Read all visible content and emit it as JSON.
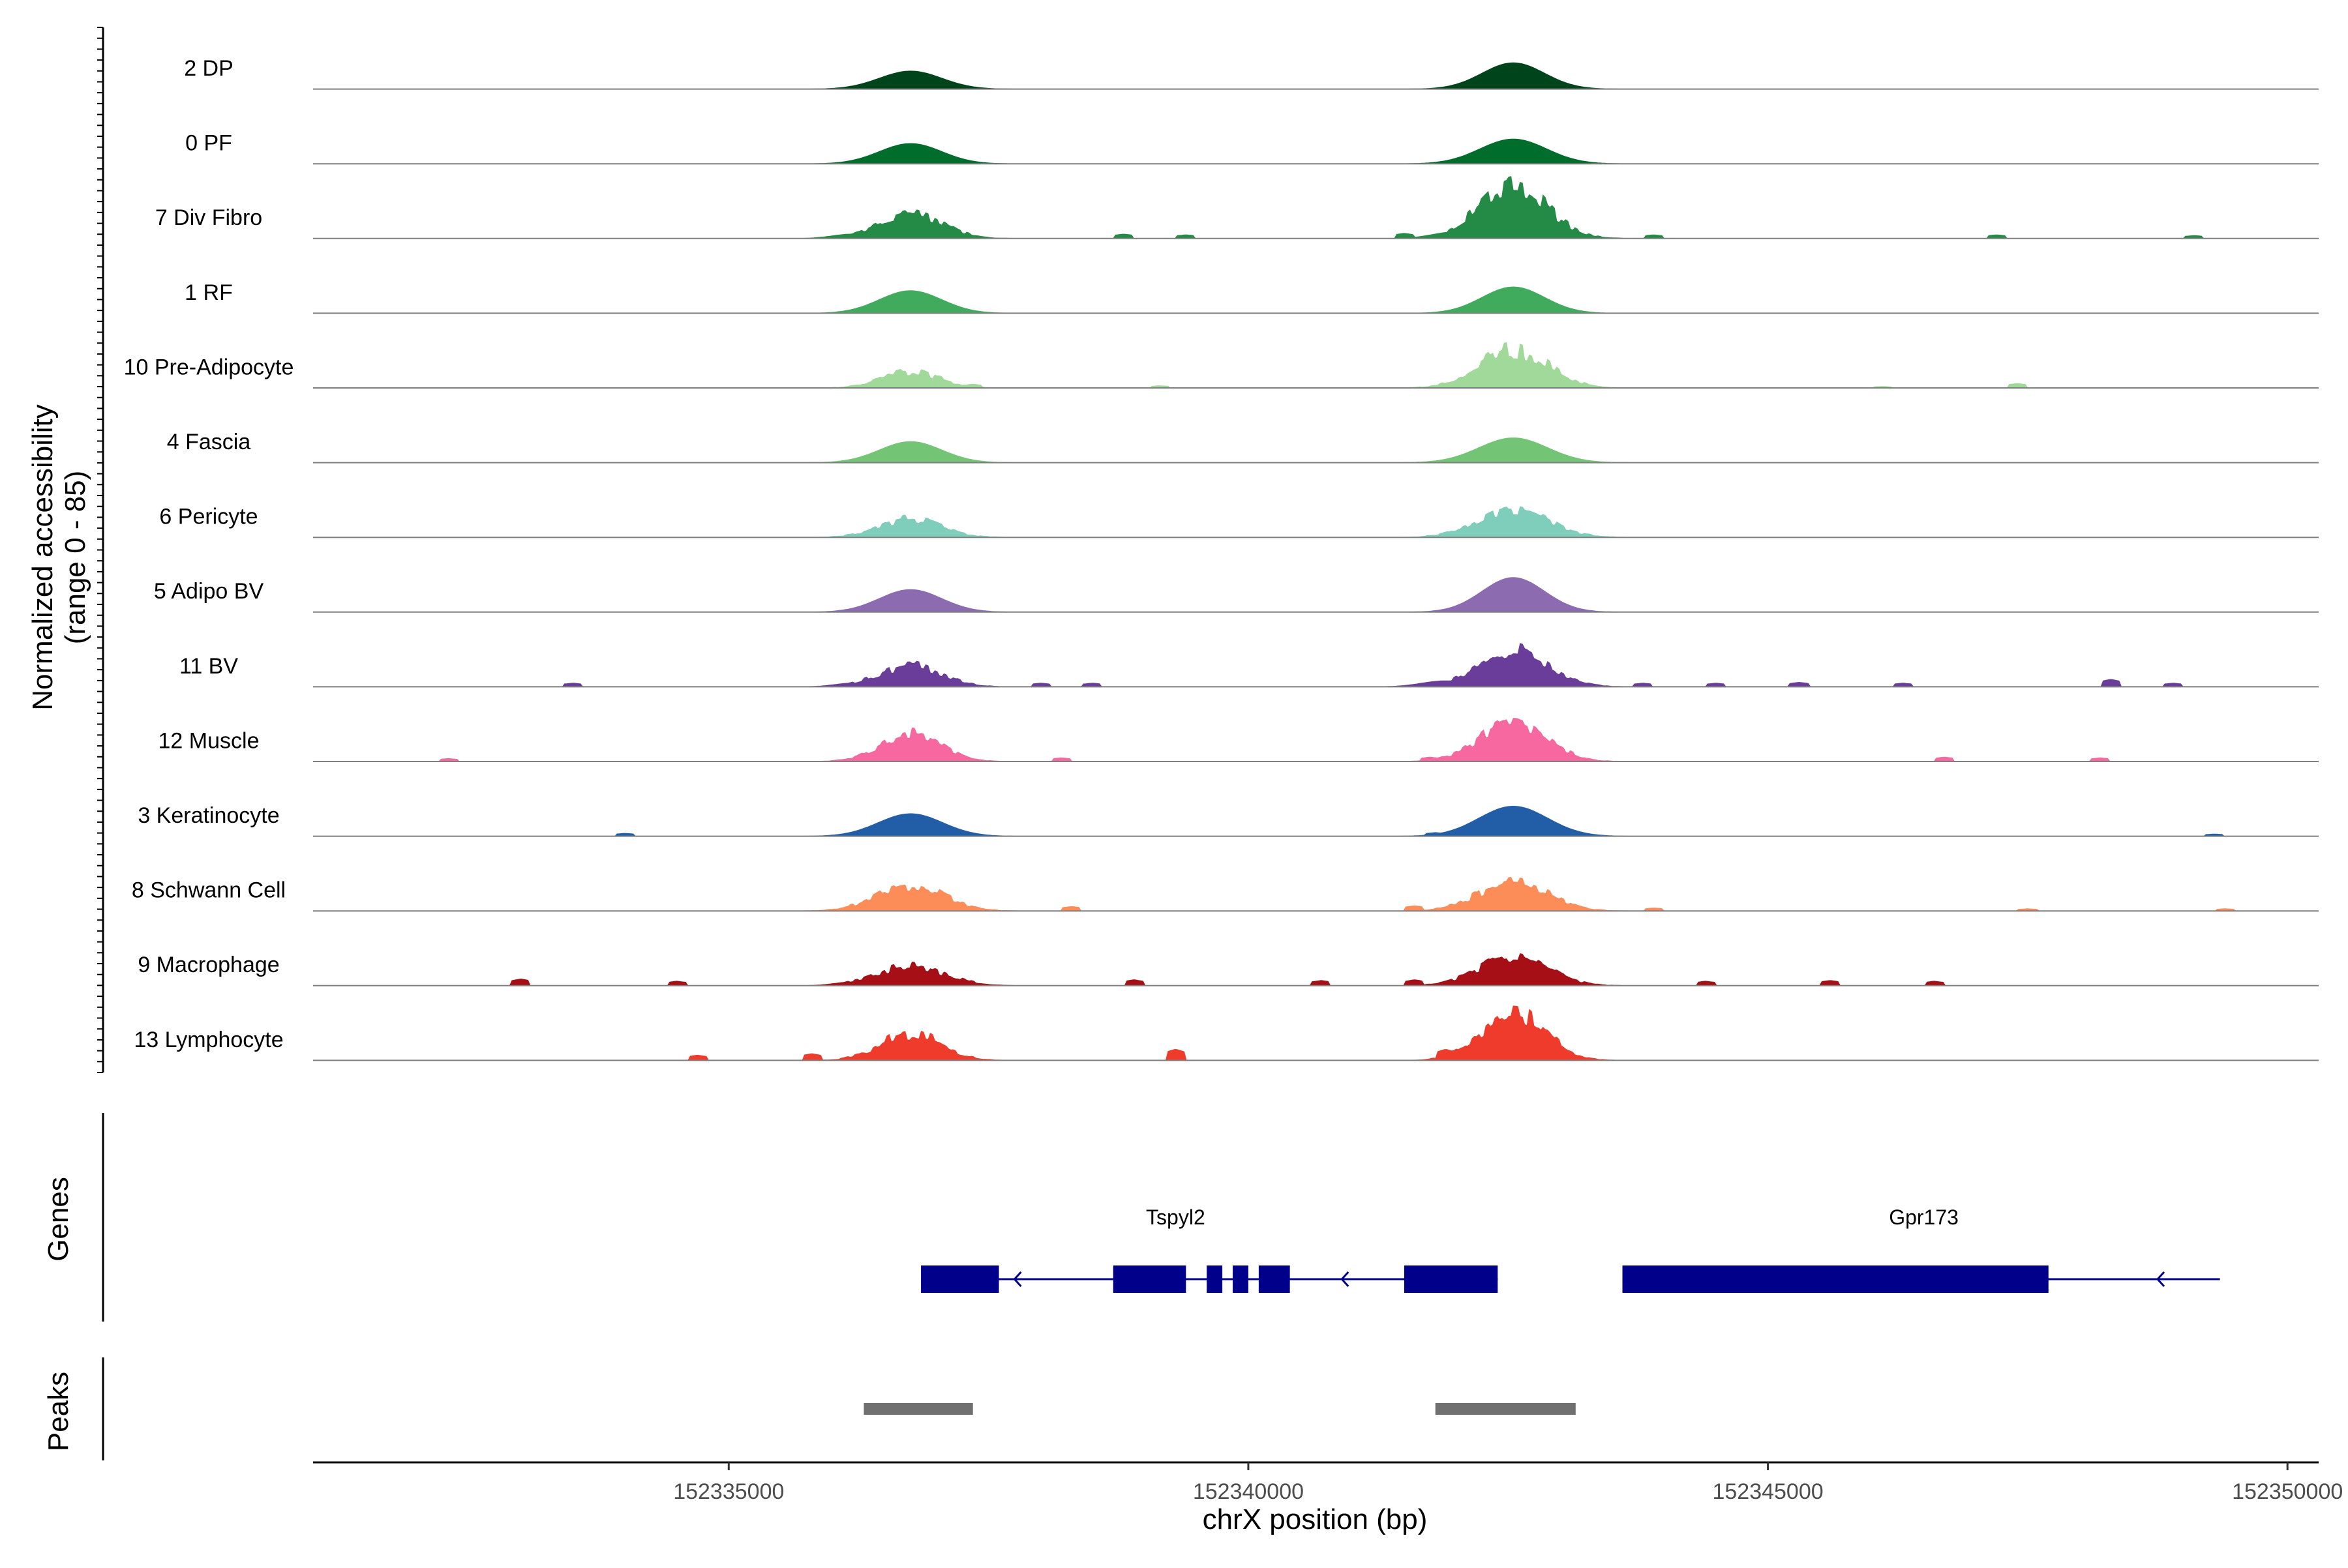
{
  "chart_data": {
    "type": "area",
    "plot_kind": "genome coverage tracks",
    "ylabel": "Normalized accessibility",
    "ylabel_range": "(range 0 - 85)",
    "y_range": [
      0,
      85
    ],
    "xlabel": "chrX position (bp)",
    "chromosome": "chrX",
    "x_range": [
      152331000,
      152350300
    ],
    "x_ticks": [
      152335000,
      152340000,
      152345000,
      152350000
    ],
    "x_tick_labels": [
      "152335000",
      "152340000",
      "152345000",
      "152350000"
    ],
    "tracks": [
      {
        "name": "2 DP",
        "color": "#00441b",
        "peaks": [
          [
            152336750,
            300,
            24,
            0
          ],
          [
            152342550,
            300,
            35,
            0
          ]
        ],
        "blips": []
      },
      {
        "name": "0 PF",
        "color": "#006d2c",
        "peaks": [
          [
            152336750,
            300,
            27,
            0
          ],
          [
            152342550,
            320,
            33,
            0
          ]
        ],
        "blips": []
      },
      {
        "name": "7 Div Fibro",
        "color": "#238b45",
        "peaks": [
          [
            152336750,
            310,
            32,
            1
          ],
          [
            152342550,
            330,
            70,
            1
          ],
          [
            152336200,
            200,
            6,
            0
          ],
          [
            152342000,
            220,
            9,
            0
          ]
        ],
        "blips": [
          [
            152338800,
            6
          ],
          [
            152339400,
            5
          ],
          [
            152341500,
            7
          ],
          [
            152343900,
            5
          ],
          [
            152347200,
            5
          ],
          [
            152349100,
            4
          ]
        ]
      },
      {
        "name": "1 RF",
        "color": "#41ab5d",
        "peaks": [
          [
            152336750,
            300,
            30,
            0
          ],
          [
            152342550,
            300,
            35,
            0
          ]
        ],
        "blips": []
      },
      {
        "name": "10 Pre-Adipocyte",
        "color": "#a1d99b",
        "peaks": [
          [
            152336750,
            280,
            22,
            1
          ],
          [
            152342550,
            330,
            52,
            1
          ]
        ],
        "blips": [
          [
            152337350,
            5
          ],
          [
            152339150,
            3
          ],
          [
            152347400,
            6
          ],
          [
            152346100,
            2
          ]
        ]
      },
      {
        "name": "4 Fascia",
        "color": "#74c476",
        "peaks": [
          [
            152336750,
            300,
            28,
            0
          ],
          [
            152342550,
            330,
            33,
            0
          ]
        ],
        "blips": []
      },
      {
        "name": "6 Pericyte",
        "color": "#7fcdbb",
        "peaks": [
          [
            152336750,
            300,
            25,
            1
          ],
          [
            152342550,
            340,
            37,
            1
          ]
        ],
        "blips": []
      },
      {
        "name": "5 Adipo BV",
        "color": "#8c6bb1",
        "peaks": [
          [
            152336750,
            300,
            30,
            0
          ],
          [
            152342550,
            300,
            46,
            0
          ]
        ],
        "blips": []
      },
      {
        "name": "11 BV",
        "color": "#6a3d9a",
        "peaks": [
          [
            152336750,
            300,
            30,
            1
          ],
          [
            152342550,
            330,
            52,
            1
          ],
          [
            152336200,
            180,
            5,
            0
          ],
          [
            152341900,
            230,
            8,
            0
          ]
        ],
        "blips": [
          [
            152333500,
            5
          ],
          [
            152336350,
            9
          ],
          [
            152338000,
            5
          ],
          [
            152338500,
            5
          ],
          [
            152343800,
            5
          ],
          [
            152344500,
            5
          ],
          [
            152345300,
            6
          ],
          [
            152346300,
            5
          ],
          [
            152348300,
            10
          ],
          [
            152348900,
            5
          ]
        ]
      },
      {
        "name": "12 Muscle",
        "color": "#f768a1",
        "peaks": [
          [
            152336750,
            290,
            37,
            1
          ],
          [
            152342550,
            320,
            54,
            1
          ]
        ],
        "blips": [
          [
            152332300,
            4
          ],
          [
            152336200,
            4
          ],
          [
            152338200,
            5
          ],
          [
            152341750,
            6
          ],
          [
            152346700,
            6
          ],
          [
            152348200,
            5
          ]
        ]
      },
      {
        "name": "3 Keratinocyte",
        "color": "#225ea8",
        "peaks": [
          [
            152336750,
            310,
            30,
            0
          ],
          [
            152342550,
            330,
            40,
            0
          ]
        ],
        "blips": [
          [
            152334000,
            4
          ],
          [
            152341800,
            5
          ],
          [
            152349300,
            3
          ]
        ]
      },
      {
        "name": "8 Schwann Cell",
        "color": "#fc8d59",
        "peaks": [
          [
            152336750,
            320,
            36,
            1
          ],
          [
            152342550,
            330,
            40,
            1
          ]
        ],
        "blips": [
          [
            152338300,
            6
          ],
          [
            152341600,
            7
          ],
          [
            152343900,
            4
          ],
          [
            152347500,
            3
          ],
          [
            152349400,
            3
          ]
        ]
      },
      {
        "name": "9 Macrophage",
        "color": "#a50f15",
        "peaks": [
          [
            152336750,
            330,
            28,
            1
          ],
          [
            152342550,
            330,
            40,
            1
          ],
          [
            152336200,
            180,
            5,
            0
          ]
        ],
        "blips": [
          [
            152333000,
            9
          ],
          [
            152334500,
            6
          ],
          [
            152338900,
            8
          ],
          [
            152340700,
            7
          ],
          [
            152341600,
            8
          ],
          [
            152344400,
            6
          ],
          [
            152345600,
            7
          ],
          [
            152346600,
            6
          ]
        ]
      },
      {
        "name": "13 Lymphocyte",
        "color": "#ef3b2c",
        "peaks": [
          [
            152336750,
            290,
            37,
            1
          ],
          [
            152342550,
            300,
            69,
            1
          ]
        ],
        "blips": [
          [
            152334700,
            7
          ],
          [
            152335800,
            9
          ],
          [
            152336300,
            10
          ],
          [
            152339300,
            15
          ],
          [
            152341900,
            15
          ],
          [
            152342100,
            10
          ],
          [
            152343100,
            8
          ]
        ]
      }
    ],
    "genes_panel_label": "Genes",
    "genes_color": "#00008b",
    "genes": [
      {
        "name": "Tspyl2",
        "strand": "-",
        "start": 152336850,
        "end": 152340700,
        "exons": [
          [
            152336850,
            152337600
          ],
          [
            152338700,
            152339400
          ],
          [
            152339600,
            152339750
          ],
          [
            152339850,
            152340000
          ],
          [
            152340100,
            152340400
          ],
          [
            152341500,
            152342400
          ]
        ],
        "line": [
          152336850,
          152342400
        ],
        "arrows": [
          152337750,
          152340900
        ]
      },
      {
        "name": "Gpr173",
        "strand": "-",
        "start": 152343600,
        "end": 152349400,
        "exons": [
          [
            152343600,
            152347700
          ]
        ],
        "line": [
          152343600,
          152349350
        ],
        "arrows": [
          152348750
        ]
      }
    ],
    "peaks_panel_label": "Peaks",
    "peaks_color": "#707070",
    "peak_regions": [
      [
        152336300,
        152337350
      ],
      [
        152341800,
        152343150
      ]
    ]
  }
}
